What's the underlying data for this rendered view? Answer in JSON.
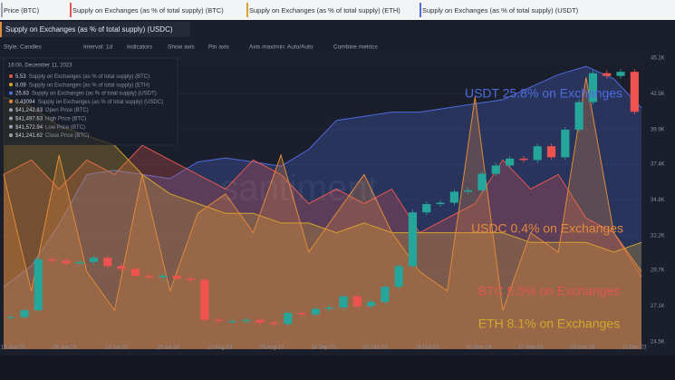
{
  "tabs": [
    "Price (BTC)",
    "Supply on Exchanges (as % of total supply) (BTC)",
    "Supply on Exchanges (as % of total supply) (ETH)",
    "Supply on Exchanges (as % of total supply) (USDT)"
  ],
  "active_tab": "Supply on Exchanges (as % of total supply) (USDC)",
  "toolbar": [
    "Style: Candles",
    "Interval: 1d",
    "Indicators",
    "Show axis",
    "Pin axis",
    "Axis max/min: Auto/Auto",
    "Combine metrics"
  ],
  "tooltip": {
    "time": "16:00, December 11, 2023",
    "rows": [
      {
        "value": "5.53",
        "label": "Supply on Exchanges (as % of total supply) (BTC)",
        "color": "#e0574f"
      },
      {
        "value": "8.09",
        "label": "Supply on Exchanges (as % of total supply) (ETH)",
        "color": "#d4a72c"
      },
      {
        "value": "25.83",
        "label": "Supply on Exchanges (as % of total supply) (USDT)",
        "color": "#4f6be0"
      },
      {
        "value": "0.43094",
        "label": "Supply on Exchanges (as % of total supply) (USDC)",
        "color": "#e08a3c"
      },
      {
        "value": "$41,242.83",
        "label": "Open Price (BTC)",
        "color": "#9aa0b0"
      },
      {
        "value": "$41,497.63",
        "label": "High Price (BTC)",
        "color": "#9aa0b0"
      },
      {
        "value": "$41,572.94",
        "label": "Low Price (BTC)",
        "color": "#9aa0b0"
      },
      {
        "value": "$41,241.62",
        "label": "Close Price (BTC)",
        "color": "#9aa0b0"
      }
    ]
  },
  "watermark": "santiment",
  "chart_data": {
    "type": "candlestick",
    "close": [
      26300,
      26800,
      30500,
      30400,
      30200,
      30300,
      30600,
      30000,
      29800,
      29300,
      29200,
      29300,
      29100,
      29000,
      26100,
      26000,
      26000,
      26100,
      25900,
      25800,
      26600,
      26500,
      26900,
      27000,
      27800,
      27100,
      27400,
      28500,
      30000,
      33900,
      34500,
      34600,
      35400,
      35500,
      36700,
      37300,
      37800,
      37700,
      38700,
      37900,
      39900,
      41900,
      44000,
      43800,
      44100,
      41200
    ],
    "up_color": "#26a69a",
    "down_color": "#ef5350",
    "ylim": [
      24500,
      45100
    ],
    "yticks": [
      {
        "value": 45100,
        "label": "45.1K"
      },
      {
        "value": 42500,
        "label": "42.5K"
      },
      {
        "value": 39900,
        "label": "39.9K"
      },
      {
        "value": 37400,
        "label": "37.4K"
      },
      {
        "value": 34800,
        "label": "34.8K"
      },
      {
        "value": 32200,
        "label": "32.2K"
      },
      {
        "value": 29700,
        "label": "29.7K"
      },
      {
        "value": 27100,
        "label": "27.1K"
      },
      {
        "value": 24500,
        "label": "24.5K"
      }
    ],
    "x_labels": [
      "19 Jun 23",
      "26 Jun 23",
      "12 Jul 23",
      "25 Jul 23",
      "12 Aug 23",
      "29 Aug 23",
      "14 Sep 23",
      "02 Oct 23",
      "16 Oct 23",
      "01 Nov 23",
      "17 Nov 23",
      "03 Dec 23",
      "11 Dec 23"
    ],
    "areas": [
      {
        "name": "USDT",
        "color": "#4f6be0",
        "ylim": [
          20,
          27
        ],
        "values": [
          21.5,
          22,
          23,
          24.2,
          24.3,
          24.2,
          24.1,
          24.5,
          24.6,
          24.5,
          24.4,
          24.8,
          25.5,
          25.6,
          25.7,
          25.7,
          25.8,
          25.9,
          26,
          26.3,
          26.6,
          26.8,
          26.5,
          25.8
        ]
      },
      {
        "name": "BTC",
        "color": "#e0574f",
        "ylim": [
          5,
          7
        ],
        "values": [
          6.2,
          6.3,
          6.1,
          6.3,
          6.2,
          6.4,
          6.3,
          6.2,
          6.1,
          6.3,
          6.2,
          6.0,
          6.1,
          6.0,
          6.1,
          5.8,
          5.9,
          6.0,
          6.3,
          6.1,
          6.2,
          5.9,
          5.8,
          5.5
        ]
      },
      {
        "name": "ETH",
        "color": "#d4a72c",
        "ylim": [
          7,
          10
        ],
        "values": [
          9.6,
          9.5,
          9.3,
          9.2,
          9.1,
          8.8,
          8.6,
          8.5,
          8.4,
          8.4,
          8.3,
          8.3,
          8.2,
          8.3,
          8.2,
          8.2,
          8.2,
          8.2,
          8.2,
          8.1,
          8.1,
          8.1,
          8.0,
          8.1
        ]
      },
      {
        "name": "USDC",
        "color": "#e08a3c",
        "ylim": [
          0,
          1.5
        ],
        "values": [
          0.9,
          0.3,
          1.0,
          0.4,
          0.2,
          0.9,
          0.3,
          0.7,
          0.8,
          0.6,
          1.0,
          0.5,
          0.7,
          0.9,
          0.6,
          0.4,
          0.3,
          1.3,
          0.2,
          0.6,
          0.5,
          1.4,
          0.6,
          0.4
        ]
      }
    ],
    "annotations": [
      {
        "text": "USDT 25.8% on Exchanges",
        "color": "#4f6be0"
      },
      {
        "text": "USDC 0.4% on Exchanges",
        "color": "#e08a3c"
      },
      {
        "text": "BTC 5.5% on Exchanges",
        "color": "#e0574f"
      },
      {
        "text": "ETH 8.1% on Exchanges",
        "color": "#d4a72c"
      }
    ]
  }
}
